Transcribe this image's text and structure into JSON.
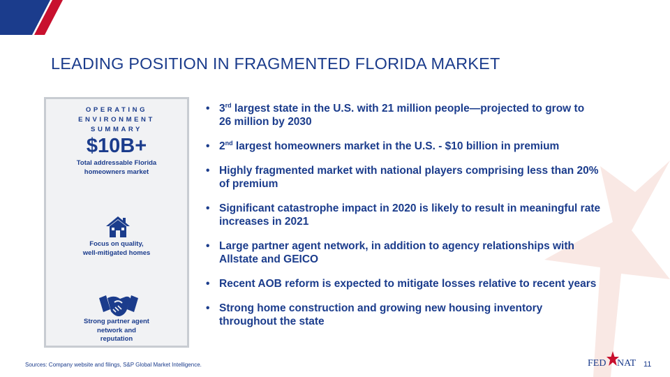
{
  "colors": {
    "navy": "#1b3c8c",
    "red": "#c8102e",
    "panel_bg": "#f1f2f4",
    "panel_border": "#c8ccd2",
    "watermark_star": "#f9e8e4"
  },
  "title": "LEADING POSITION IN FRAGMENTED FLORIDA MARKET",
  "panel": {
    "heading_line1": "OPERATING ENVIRONMENT",
    "heading_line2": "SUMMARY",
    "big_number": "$10B+",
    "big_number_caption_line1": "Total addressable Florida",
    "big_number_caption_line2": "homeowners market",
    "icon_1": "house-icon",
    "focus_line1": "Focus on quality,",
    "focus_line2": "well-mitigated homes",
    "icon_2": "handshake-icon",
    "partner_line1": "Strong partner agent",
    "partner_line2": "network and",
    "partner_line3": "reputation"
  },
  "bullets": {
    "b1": {
      "pre": "3",
      "sup": "rd",
      "line1": " largest state in the U.S. with 21 million people—projected to grow to",
      "line2": "26 million by 2030"
    },
    "b2": {
      "pre": "2",
      "sup": "nd",
      "line1": " largest homeowners market in the U.S. - $10 billion in premium"
    },
    "b3": {
      "line1": "Highly fragmented market with national players comprising less than 20%",
      "line2": "of premium"
    },
    "b4": {
      "line1": "Significant catastrophe impact in 2020 is likely to result in meaningful rate",
      "line2": "increases in 2021"
    },
    "b5": {
      "line1": "Large partner agent network, in addition to agency relationships with",
      "line2": "Allstate and GEICO"
    },
    "b6": {
      "line1": "Recent AOB reform is expected to mitigate losses relative to recent years"
    },
    "b7": {
      "line1": "Strong home construction and growing new housing inventory",
      "line2": "throughout the state"
    }
  },
  "footer": {
    "sources": "Sources: Company website and filings, S&P Global Market Intelligence.",
    "logo_left": "FED",
    "logo_right": "NAT",
    "page_number": "11"
  }
}
